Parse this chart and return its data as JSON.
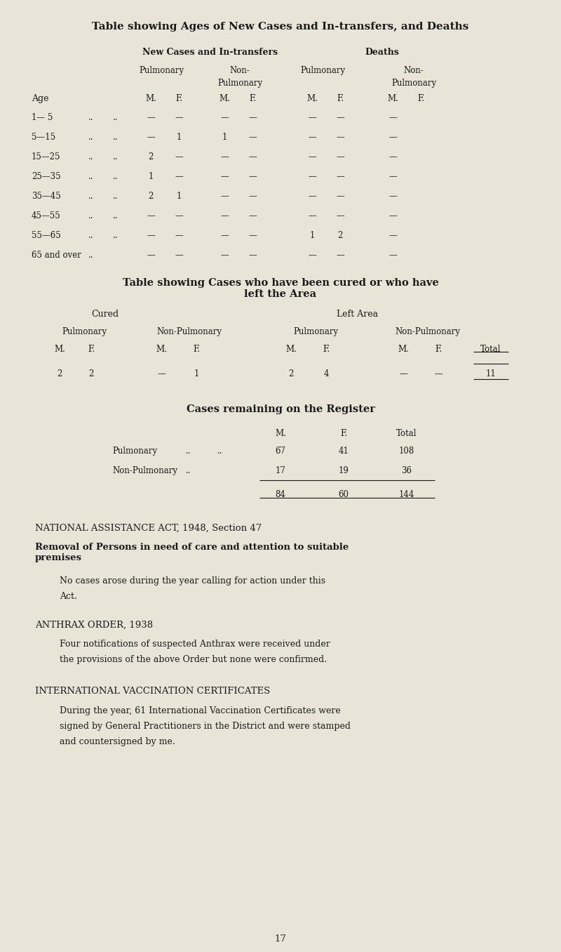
{
  "bg_color": "#e8e4d8",
  "text_color": "#1a1a1a",
  "title1": "Table showing Ages of New Cases and In-transfers, and Deaths",
  "table1_header_row1": [
    "",
    "",
    "New Cases and In-transfers",
    "",
    "",
    "",
    "Deaths",
    "",
    "",
    ""
  ],
  "table1_header_row2": [
    "",
    "",
    "Pulmonary",
    "",
    "Non-\nPulmonary",
    "",
    "Pulmonary",
    "",
    "Non-\nPulmonary",
    ""
  ],
  "table1_header_row3": [
    "Age",
    "",
    "M.",
    "F.",
    "M.",
    "F.",
    "M.",
    "F.",
    "M.",
    "F."
  ],
  "table1_rows": [
    [
      "1— 5",
      "..",
      "..",
      "—",
      "—",
      "—",
      "—",
      "—",
      "—",
      "—"
    ],
    [
      "5—15",
      "..",
      "..",
      "—",
      "1",
      "1",
      "—",
      "—",
      "—",
      "—"
    ],
    [
      "15—25",
      "..",
      "..",
      "2",
      "—",
      "—",
      "—",
      "—",
      "—",
      "—"
    ],
    [
      "25—35",
      "..",
      "..",
      "1",
      "—",
      "—",
      "—",
      "—",
      "—",
      "—"
    ],
    [
      "35—45",
      "..",
      "..",
      "2",
      "1",
      "—",
      "—",
      "—",
      "—",
      "—"
    ],
    [
      "45—55",
      "..",
      "..",
      "—",
      "—",
      "—",
      "—",
      "—",
      "—",
      "—"
    ],
    [
      "55—65",
      "..",
      "..",
      "—",
      "—",
      "—",
      "—",
      "1",
      "2",
      "—"
    ],
    [
      "65 and over",
      "..",
      "",
      "—",
      "—",
      "—",
      "—",
      "—",
      "—",
      "—"
    ]
  ],
  "title2": "Table showing Cases who have been cured or who have\nleft the Area",
  "table2_header_row1": [
    "Cured",
    "",
    "",
    "",
    "Left Area",
    "",
    "",
    "",
    ""
  ],
  "table2_header_row2": [
    "Pulmonary",
    "",
    "Non-Pulmonary",
    "",
    "Pulmonary",
    "",
    "Non-Pulmonary",
    "",
    "Total"
  ],
  "table2_header_row3": [
    "M.",
    "F.",
    "M.",
    "F.",
    "M.",
    "F.",
    "M.",
    "F.",
    ""
  ],
  "table2_row": [
    "2",
    "2",
    "—",
    "1",
    "2",
    "4",
    "—",
    "—",
    "11"
  ],
  "title3": "Cases remaining on the Register",
  "register_headers": [
    "M.",
    "F.",
    "Total"
  ],
  "register_rows": [
    [
      "Pulmonary",
      "..",
      "..",
      "67",
      "41",
      "108"
    ],
    [
      "Non-Pulmonary",
      "..",
      "",
      "17",
      "19",
      "36"
    ]
  ],
  "register_totals": [
    "84",
    "60",
    "144"
  ],
  "section1_title": "NATIONAL ASSISTANCE ACT, 1948, Section 47",
  "section1_heading": "Removal of Persons in need of care and attention to suitable\npremises",
  "section1_body": "No cases arose during the year calling for action under this\nAct.",
  "section2_title": "ANTHRAX ORDER, 1938",
  "section2_body": "Four notifications of suspected Anthrax were received under\nthe provisions of the above Order but none were confirmed.",
  "section3_title": "INTERNATIONAL VACCINATION CERTIFICATES",
  "section3_body": "During the year, 61 International Vaccination Certificates were\nsigned by General Practitioners in the District and were stamped\nand countersigned by me.",
  "page_number": "17"
}
